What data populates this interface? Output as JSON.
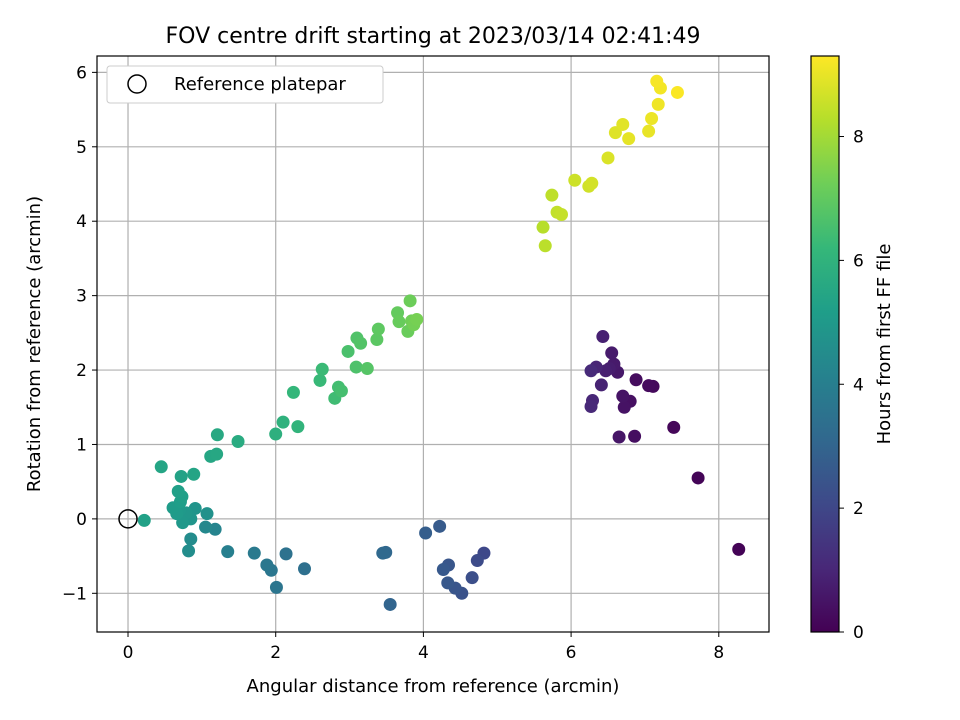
{
  "chart_data": {
    "type": "scatter",
    "title": "FOV centre drift starting at 2023/03/14 02:41:49",
    "xlabel": "Angular distance from reference (arcmin)",
    "ylabel": "Rotation from reference (arcmin)",
    "xlim": [
      -0.42,
      8.68
    ],
    "ylim": [
      -1.52,
      6.22
    ],
    "xticks": [
      0,
      2,
      4,
      6,
      8
    ],
    "xtick_labels": [
      "0",
      "2",
      "4",
      "6",
      "8"
    ],
    "yticks": [
      -1,
      0,
      1,
      2,
      3,
      4,
      5,
      6
    ],
    "ytick_labels": [
      "−1",
      "0",
      "1",
      "2",
      "3",
      "4",
      "5",
      "6"
    ],
    "grid": true,
    "legend": {
      "position": "top-left",
      "entries": [
        {
          "label": "Reference platepar",
          "marker": "open-circle",
          "x": 0,
          "y": 0
        }
      ]
    },
    "colorbar": {
      "label": "Hours from first FF file",
      "colormap": "viridis",
      "range": [
        0,
        9.3
      ],
      "ticks": [
        0,
        2,
        4,
        6,
        8
      ],
      "tick_labels": [
        "0",
        "2",
        "4",
        "6",
        "8"
      ]
    },
    "colormap_stops": [
      "#440154",
      "#482878",
      "#3e4989",
      "#31688e",
      "#26828e",
      "#1f9e89",
      "#35b779",
      "#6ece58",
      "#b5de2b",
      "#fde725"
    ],
    "points": [
      [
        8.27,
        -0.41,
        0.05
      ],
      [
        7.72,
        0.55,
        0.1
      ],
      [
        7.39,
        1.23,
        0.15
      ],
      [
        7.11,
        1.78,
        0.2
      ],
      [
        7.05,
        1.79,
        0.25
      ],
      [
        6.88,
        1.87,
        0.3
      ],
      [
        6.86,
        1.11,
        0.35
      ],
      [
        6.8,
        1.58,
        0.4
      ],
      [
        6.72,
        1.5,
        0.45
      ],
      [
        6.7,
        1.65,
        0.5
      ],
      [
        6.65,
        1.1,
        0.55
      ],
      [
        6.63,
        1.97,
        0.6
      ],
      [
        6.58,
        2.08,
        0.65
      ],
      [
        6.55,
        2.23,
        0.7
      ],
      [
        6.52,
        2.02,
        0.75
      ],
      [
        6.47,
        1.99,
        0.8
      ],
      [
        6.43,
        2.45,
        0.85
      ],
      [
        6.41,
        1.8,
        0.9
      ],
      [
        6.34,
        2.04,
        0.95
      ],
      [
        6.29,
        1.59,
        1.0
      ],
      [
        6.27,
        1.51,
        1.05
      ],
      [
        6.27,
        1.99,
        1.1
      ],
      [
        4.82,
        -0.46,
        2.05
      ],
      [
        4.73,
        -0.56,
        2.15
      ],
      [
        4.66,
        -0.79,
        2.25
      ],
      [
        4.52,
        -1.0,
        2.35
      ],
      [
        4.43,
        -0.93,
        2.45
      ],
      [
        4.34,
        -0.62,
        2.5
      ],
      [
        4.33,
        -0.86,
        2.55
      ],
      [
        4.27,
        -0.68,
        2.6
      ],
      [
        4.22,
        -0.1,
        2.65
      ],
      [
        4.03,
        -0.19,
        2.75
      ],
      [
        3.55,
        -1.15,
        3.0
      ],
      [
        3.49,
        -0.45,
        3.1
      ],
      [
        3.45,
        -0.46,
        3.15
      ],
      [
        2.39,
        -0.67,
        3.4
      ],
      [
        2.14,
        -0.47,
        3.5
      ],
      [
        2.01,
        -0.92,
        3.6
      ],
      [
        1.94,
        -0.69,
        3.65
      ],
      [
        1.88,
        -0.62,
        3.7
      ],
      [
        1.71,
        -0.46,
        3.8
      ],
      [
        1.35,
        -0.44,
        4.0
      ],
      [
        1.18,
        -0.14,
        4.2
      ],
      [
        1.05,
        -0.11,
        4.35
      ],
      [
        0.85,
        -0.27,
        4.5
      ],
      [
        0.82,
        -0.43,
        4.55
      ],
      [
        1.07,
        0.07,
        4.7
      ],
      [
        0.91,
        0.14,
        4.8
      ],
      [
        0.85,
        0.0,
        4.85
      ],
      [
        0.79,
        0.08,
        4.9
      ],
      [
        0.74,
        -0.05,
        4.95
      ],
      [
        0.7,
        0.12,
        5.0
      ],
      [
        0.66,
        0.07,
        5.05
      ],
      [
        0.61,
        0.15,
        5.1
      ],
      [
        0.71,
        0.23,
        5.15
      ],
      [
        0.73,
        0.3,
        5.2
      ],
      [
        0.68,
        0.37,
        5.25
      ],
      [
        0.22,
        -0.02,
        5.3
      ],
      [
        0.72,
        0.57,
        5.35
      ],
      [
        0.89,
        0.6,
        5.4
      ],
      [
        0.45,
        0.7,
        5.45
      ],
      [
        1.12,
        0.84,
        5.5
      ],
      [
        1.2,
        0.87,
        5.55
      ],
      [
        1.21,
        1.13,
        5.6
      ],
      [
        1.49,
        1.04,
        5.7
      ],
      [
        2.0,
        1.14,
        5.85
      ],
      [
        2.1,
        1.3,
        5.95
      ],
      [
        2.3,
        1.24,
        6.05
      ],
      [
        2.24,
        1.7,
        6.15
      ],
      [
        2.6,
        1.86,
        6.25
      ],
      [
        2.63,
        2.01,
        6.3
      ],
      [
        2.8,
        1.62,
        6.4
      ],
      [
        2.85,
        1.77,
        6.45
      ],
      [
        2.89,
        1.72,
        6.5
      ],
      [
        2.98,
        2.25,
        6.6
      ],
      [
        3.09,
        2.04,
        6.65
      ],
      [
        3.1,
        2.43,
        6.7
      ],
      [
        3.15,
        2.36,
        6.75
      ],
      [
        3.24,
        2.02,
        6.8
      ],
      [
        3.37,
        2.41,
        6.9
      ],
      [
        3.39,
        2.55,
        6.95
      ],
      [
        3.65,
        2.77,
        7.05
      ],
      [
        3.67,
        2.65,
        7.1
      ],
      [
        3.79,
        2.52,
        7.15
      ],
      [
        3.82,
        2.93,
        7.2
      ],
      [
        3.84,
        2.66,
        7.25
      ],
      [
        3.87,
        2.61,
        7.3
      ],
      [
        3.91,
        2.68,
        7.35
      ],
      [
        5.62,
        3.92,
        8.3
      ],
      [
        5.65,
        3.67,
        8.35
      ],
      [
        5.74,
        4.35,
        8.4
      ],
      [
        5.81,
        4.12,
        8.45
      ],
      [
        5.87,
        4.09,
        8.5
      ],
      [
        6.05,
        4.55,
        8.6
      ],
      [
        6.24,
        4.47,
        8.65
      ],
      [
        6.28,
        4.51,
        8.7
      ],
      [
        6.5,
        4.85,
        8.8
      ],
      [
        6.6,
        5.19,
        8.85
      ],
      [
        6.7,
        5.3,
        8.9
      ],
      [
        6.78,
        5.11,
        8.95
      ],
      [
        7.05,
        5.21,
        9.0
      ],
      [
        7.09,
        5.38,
        9.05
      ],
      [
        7.18,
        5.57,
        9.1
      ],
      [
        7.21,
        5.79,
        9.15
      ],
      [
        7.16,
        5.88,
        9.2
      ],
      [
        7.44,
        5.73,
        9.25
      ]
    ]
  }
}
